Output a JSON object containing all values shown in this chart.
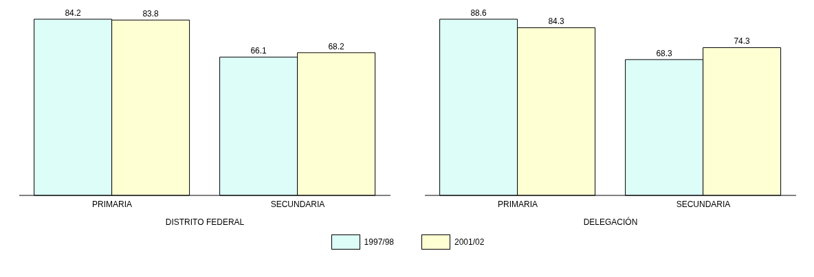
{
  "chart_data": [
    {
      "type": "bar",
      "categories": [
        "PRIMARIA",
        "SECUNDARIA"
      ],
      "xlabel": "DISTRITO FEDERAL",
      "data_labels": true,
      "legend": "bottom",
      "series": [
        {
          "name": "1997/98",
          "color": "#dcfdf8",
          "values": [
            84.2,
            66.1
          ]
        },
        {
          "name": "2001/02",
          "color": "#ffffd4",
          "values": [
            83.8,
            68.2
          ]
        }
      ]
    },
    {
      "type": "bar",
      "categories": [
        "PRIMARIA",
        "SECUNDARIA"
      ],
      "xlabel": "DELEGACIÓN",
      "data_labels": true,
      "legend": "bottom",
      "series": [
        {
          "name": "1997/98",
          "color": "#dcfdf8",
          "values": [
            88.6,
            68.3
          ]
        },
        {
          "name": "2001/02",
          "color": "#ffffd4",
          "values": [
            84.3,
            74.3
          ]
        }
      ]
    }
  ]
}
